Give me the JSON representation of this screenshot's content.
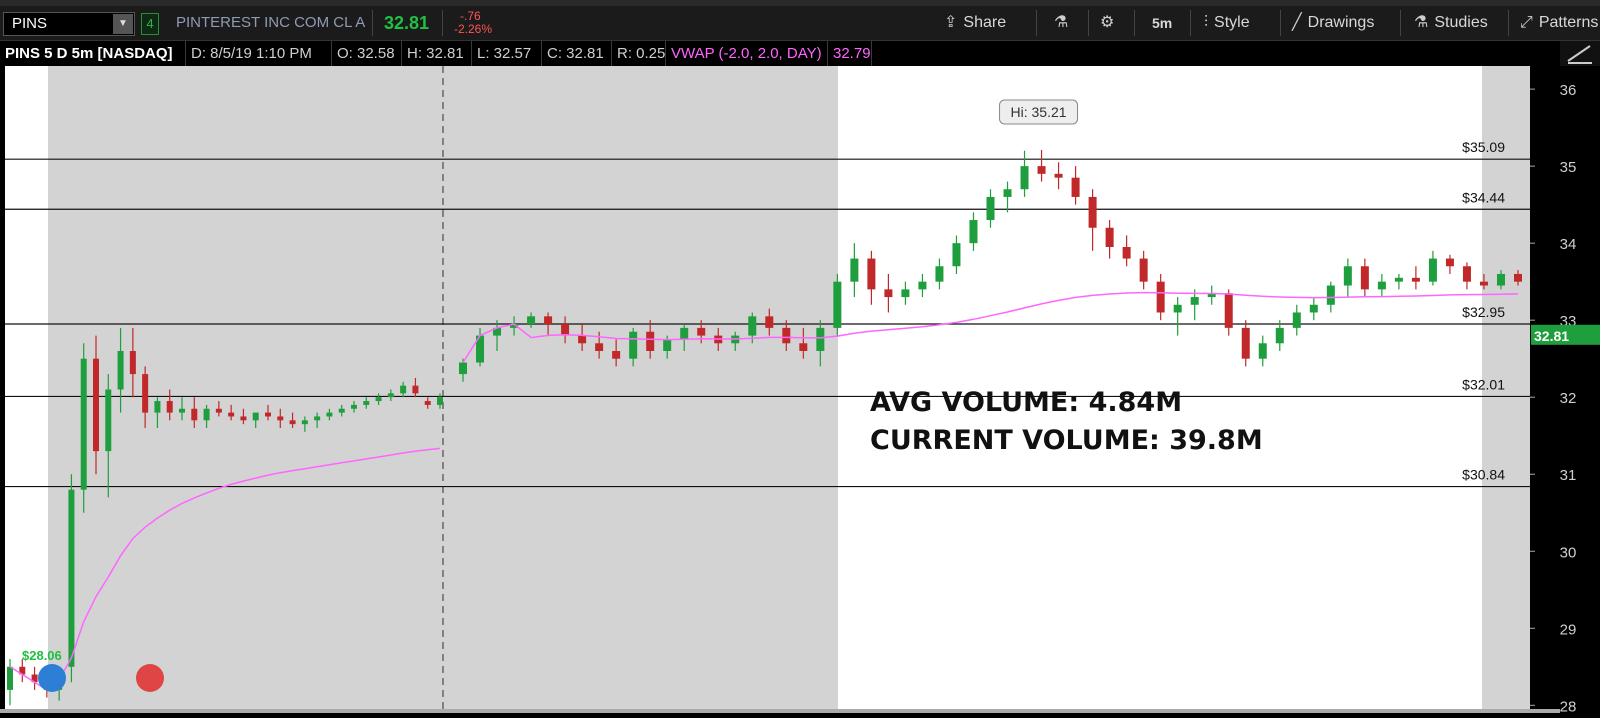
{
  "toolbar": {
    "symbol": "PINS",
    "link_number": "4",
    "company": "PINTEREST INC COM CL A",
    "last_price": "32.81",
    "net_change": "-.76",
    "pct_change": "-2.26%",
    "share_label": "Share",
    "timeframe_label": "5m",
    "style_label": "Style",
    "drawings_label": "Drawings",
    "studies_label": "Studies",
    "patterns_label": "Patterns",
    "icons": [
      "share-icon",
      "flask-icon",
      "gear-icon",
      "candle-style-icon",
      "pencil-icon",
      "studies-flask-icon",
      "patterns-icon"
    ]
  },
  "infobar": {
    "title": "PINS 5 D 5m [NASDAQ]",
    "date": "D: 8/5/19 1:10 PM",
    "open": "O: 32.58",
    "high": "H: 32.81",
    "low": "L: 32.57",
    "close": "C: 32.81",
    "range": "R: 0.25",
    "vwap_label": "VWAP (-2.0, 2.0, DAY)",
    "vwap_value": "32.79"
  },
  "chart_data": {
    "type": "candlestick",
    "price_axis": {
      "ticks": [
        "36",
        "35",
        "34",
        "33",
        "32",
        "31",
        "30",
        "29",
        "28"
      ],
      "range": [
        27.9,
        36.3
      ],
      "current_price_label": "32.81"
    },
    "horizontal_levels": [
      {
        "price": 35.09,
        "label": "$35.09"
      },
      {
        "price": 34.44,
        "label": "$34.44"
      },
      {
        "price": 32.95,
        "label": "$32.95"
      },
      {
        "price": 32.01,
        "label": "$32.01"
      },
      {
        "price": 30.84,
        "label": "$30.84"
      }
    ],
    "high_callout": "Hi: 35.21",
    "low_label": "$28.06",
    "annotations": [
      "AVG VOLUME: 4.84M",
      "CURRENT VOLUME: 39.8M"
    ],
    "shading": "extended-hours sessions shaded gray",
    "vwap_color": "#ff66ff",
    "up_color": "#1e9e3c",
    "down_color": "#c0282a",
    "candles_prev_day": [
      [
        28.2,
        28.6,
        28.0,
        28.5
      ],
      [
        28.5,
        28.6,
        28.3,
        28.4
      ],
      [
        28.4,
        28.5,
        28.2,
        28.3
      ],
      [
        28.3,
        28.5,
        28.1,
        28.2
      ],
      [
        28.2,
        28.4,
        28.06,
        28.3
      ],
      [
        28.5,
        31.0,
        28.3,
        30.8
      ],
      [
        30.8,
        32.7,
        30.5,
        32.5
      ],
      [
        32.5,
        32.8,
        31.0,
        31.3
      ],
      [
        31.3,
        32.3,
        30.7,
        32.1
      ],
      [
        32.1,
        32.9,
        31.8,
        32.6
      ],
      [
        32.6,
        32.9,
        32.0,
        32.3
      ],
      [
        32.3,
        32.4,
        31.6,
        31.8
      ],
      [
        31.8,
        32.0,
        31.6,
        31.95
      ],
      [
        31.95,
        32.1,
        31.7,
        31.8
      ],
      [
        31.8,
        32.0,
        31.7,
        31.85
      ],
      [
        31.85,
        32.0,
        31.6,
        31.7
      ],
      [
        31.7,
        31.9,
        31.6,
        31.85
      ],
      [
        31.85,
        31.95,
        31.75,
        31.8
      ],
      [
        31.8,
        31.9,
        31.7,
        31.75
      ],
      [
        31.75,
        31.85,
        31.65,
        31.7
      ],
      [
        31.7,
        31.8,
        31.6,
        31.8
      ],
      [
        31.8,
        31.9,
        31.7,
        31.75
      ],
      [
        31.75,
        31.85,
        31.6,
        31.7
      ],
      [
        31.7,
        31.8,
        31.6,
        31.65
      ],
      [
        31.65,
        31.75,
        31.55,
        31.7
      ],
      [
        31.7,
        31.8,
        31.6,
        31.75
      ],
      [
        31.75,
        31.85,
        31.7,
        31.8
      ],
      [
        31.8,
        31.9,
        31.75,
        31.85
      ],
      [
        31.85,
        31.95,
        31.8,
        31.9
      ],
      [
        31.9,
        32.0,
        31.85,
        31.95
      ],
      [
        31.95,
        32.05,
        31.9,
        32.0
      ],
      [
        32.0,
        32.1,
        31.95,
        32.05
      ],
      [
        32.05,
        32.2,
        32.0,
        32.15
      ],
      [
        32.15,
        32.25,
        32.0,
        32.05
      ],
      [
        31.95,
        32.0,
        31.85,
        31.9
      ],
      [
        31.9,
        32.05,
        31.85,
        32.0
      ]
    ],
    "candles_day": [
      [
        32.3,
        32.5,
        32.2,
        32.45
      ],
      [
        32.45,
        32.9,
        32.4,
        32.8
      ],
      [
        32.8,
        33.0,
        32.6,
        32.9
      ],
      [
        32.9,
        33.05,
        32.8,
        32.95
      ],
      [
        32.95,
        33.1,
        32.9,
        33.05
      ],
      [
        33.05,
        33.1,
        32.8,
        32.95
      ],
      [
        32.95,
        33.05,
        32.7,
        32.8
      ],
      [
        32.8,
        32.95,
        32.6,
        32.7
      ],
      [
        32.7,
        32.85,
        32.5,
        32.6
      ],
      [
        32.6,
        32.75,
        32.4,
        32.5
      ],
      [
        32.5,
        32.9,
        32.4,
        32.85
      ],
      [
        32.85,
        33.0,
        32.5,
        32.6
      ],
      [
        32.6,
        32.8,
        32.5,
        32.75
      ],
      [
        32.75,
        32.95,
        32.6,
        32.9
      ],
      [
        32.9,
        33.0,
        32.7,
        32.8
      ],
      [
        32.8,
        32.9,
        32.6,
        32.7
      ],
      [
        32.7,
        32.85,
        32.6,
        32.8
      ],
      [
        32.8,
        33.1,
        32.7,
        33.05
      ],
      [
        33.05,
        33.15,
        32.8,
        32.9
      ],
      [
        32.9,
        33.0,
        32.6,
        32.7
      ],
      [
        32.7,
        32.9,
        32.5,
        32.6
      ],
      [
        32.6,
        33.0,
        32.4,
        32.9
      ],
      [
        32.9,
        33.6,
        32.8,
        33.5
      ],
      [
        33.5,
        34.0,
        33.3,
        33.8
      ],
      [
        33.8,
        33.9,
        33.2,
        33.4
      ],
      [
        33.4,
        33.6,
        33.1,
        33.3
      ],
      [
        33.3,
        33.5,
        33.2,
        33.4
      ],
      [
        33.4,
        33.6,
        33.3,
        33.5
      ],
      [
        33.5,
        33.8,
        33.4,
        33.7
      ],
      [
        33.7,
        34.1,
        33.6,
        34.0
      ],
      [
        34.0,
        34.4,
        33.9,
        34.3
      ],
      [
        34.3,
        34.7,
        34.2,
        34.6
      ],
      [
        34.6,
        34.8,
        34.4,
        34.7
      ],
      [
        34.7,
        35.2,
        34.6,
        35.0
      ],
      [
        35.0,
        35.21,
        34.8,
        34.9
      ],
      [
        34.9,
        35.05,
        34.7,
        34.85
      ],
      [
        34.85,
        35.0,
        34.5,
        34.6
      ],
      [
        34.6,
        34.7,
        33.9,
        34.2
      ],
      [
        34.2,
        34.3,
        33.8,
        33.95
      ],
      [
        33.95,
        34.1,
        33.7,
        33.8
      ],
      [
        33.8,
        33.9,
        33.4,
        33.5
      ],
      [
        33.5,
        33.6,
        33.0,
        33.1
      ],
      [
        33.1,
        33.3,
        32.8,
        33.2
      ],
      [
        33.2,
        33.4,
        33.0,
        33.3
      ],
      [
        33.3,
        33.45,
        33.2,
        33.35
      ],
      [
        33.35,
        33.4,
        32.8,
        32.9
      ],
      [
        32.9,
        33.0,
        32.4,
        32.5
      ],
      [
        32.5,
        32.8,
        32.4,
        32.7
      ],
      [
        32.7,
        33.0,
        32.6,
        32.9
      ],
      [
        32.9,
        33.2,
        32.8,
        33.1
      ],
      [
        33.1,
        33.3,
        33.0,
        33.2
      ],
      [
        33.2,
        33.5,
        33.1,
        33.45
      ],
      [
        33.45,
        33.8,
        33.3,
        33.7
      ],
      [
        33.7,
        33.8,
        33.3,
        33.4
      ],
      [
        33.4,
        33.6,
        33.3,
        33.5
      ],
      [
        33.5,
        33.6,
        33.4,
        33.55
      ],
      [
        33.55,
        33.7,
        33.4,
        33.5
      ],
      [
        33.5,
        33.9,
        33.45,
        33.8
      ],
      [
        33.8,
        33.85,
        33.6,
        33.7
      ],
      [
        33.7,
        33.75,
        33.4,
        33.5
      ],
      [
        33.5,
        33.6,
        33.4,
        33.45
      ],
      [
        33.45,
        33.65,
        33.4,
        33.6
      ],
      [
        33.6,
        33.65,
        33.45,
        33.5
      ]
    ]
  }
}
